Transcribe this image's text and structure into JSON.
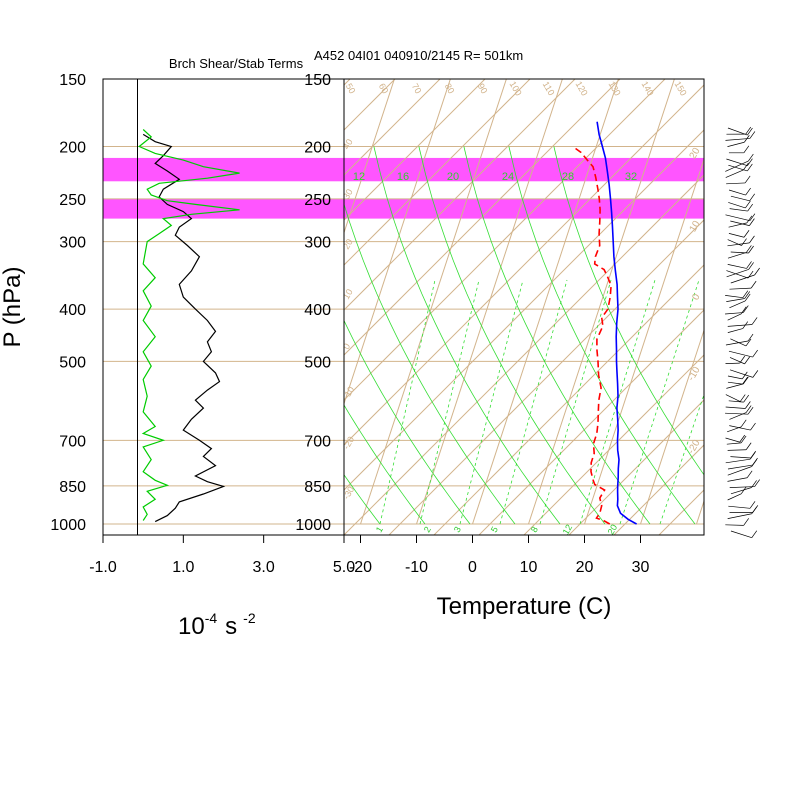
{
  "chart_data": [
    {
      "type": "line",
      "title": "Brch Shear/Stab Terms",
      "xlabel": "10",
      "xlabel_exponent": "-4",
      "xlabel_unit": "s",
      "xlabel_unit_exponent": "-2",
      "ylabel": "P (hPa)",
      "xlim": [
        -1.0,
        5.0
      ],
      "x_ticks": [
        "-1.0",
        "1.0",
        "3.0",
        "5.0"
      ],
      "y_scale": "log",
      "ylim": [
        1000,
        150
      ],
      "y_ticks": [
        "150",
        "200",
        "250",
        "300",
        "400",
        "500",
        "700",
        "850",
        "1000"
      ],
      "highlight_bands_hpa": [
        [
          210,
          232
        ],
        [
          250,
          272
        ]
      ],
      "highlight_color": "#ff55ff",
      "grid": true,
      "series": [
        {
          "color": "#000000",
          "points": [
            [
              0.0,
              190
            ],
            [
              0.3,
              196
            ],
            [
              0.7,
              200
            ],
            [
              0.5,
              208
            ],
            [
              0.3,
              215
            ],
            [
              0.6,
              222
            ],
            [
              0.9,
              230
            ],
            [
              0.5,
              240
            ],
            [
              0.4,
              248
            ],
            [
              0.6,
              256
            ],
            [
              1.0,
              264
            ],
            [
              1.2,
              272
            ],
            [
              0.9,
              282
            ],
            [
              0.8,
              292
            ],
            [
              1.1,
              305
            ],
            [
              1.4,
              320
            ],
            [
              1.2,
              340
            ],
            [
              0.9,
              360
            ],
            [
              1.0,
              380
            ],
            [
              1.3,
              400
            ],
            [
              1.6,
              420
            ],
            [
              1.8,
              440
            ],
            [
              1.6,
              460
            ],
            [
              1.7,
              480
            ],
            [
              1.5,
              500
            ],
            [
              1.8,
              525
            ],
            [
              1.9,
              545
            ],
            [
              1.6,
              565
            ],
            [
              1.3,
              590
            ],
            [
              1.5,
              610
            ],
            [
              1.2,
              640
            ],
            [
              1.0,
              670
            ],
            [
              1.4,
              700
            ],
            [
              1.7,
              725
            ],
            [
              1.5,
              750
            ],
            [
              1.8,
              780
            ],
            [
              1.3,
              815
            ],
            [
              1.6,
              835
            ],
            [
              2.0,
              852
            ],
            [
              1.5,
              880
            ],
            [
              0.9,
              910
            ],
            [
              0.8,
              935
            ],
            [
              0.6,
              965
            ],
            [
              0.3,
              990
            ]
          ]
        },
        {
          "color": "#00cc00",
          "points": [
            [
              0.0,
              186
            ],
            [
              0.2,
              192
            ],
            [
              -0.1,
              200
            ],
            [
              0.3,
              206
            ],
            [
              1.0,
              212
            ],
            [
              1.5,
              218
            ],
            [
              2.4,
              224
            ],
            [
              1.6,
              229
            ],
            [
              0.4,
              234
            ],
            [
              0.1,
              240
            ],
            [
              0.2,
              246
            ],
            [
              0.6,
              252
            ],
            [
              1.3,
              256
            ],
            [
              2.4,
              262
            ],
            [
              1.2,
              267
            ],
            [
              0.5,
              272
            ],
            [
              0.7,
              280
            ],
            [
              0.4,
              290
            ],
            [
              0.1,
              300
            ],
            [
              0.0,
              330
            ],
            [
              0.3,
              350
            ],
            [
              0.0,
              370
            ],
            [
              0.2,
              395
            ],
            [
              0.0,
              420
            ],
            [
              0.3,
              450
            ],
            [
              0.0,
              480
            ],
            [
              0.2,
              510
            ],
            [
              0.0,
              540
            ],
            [
              0.1,
              580
            ],
            [
              0.0,
              620
            ],
            [
              0.3,
              660
            ],
            [
              0.0,
              680
            ],
            [
              0.5,
              700
            ],
            [
              0.0,
              720
            ],
            [
              0.2,
              760
            ],
            [
              0.0,
              800
            ],
            [
              0.3,
              830
            ],
            [
              0.6,
              848
            ],
            [
              0.1,
              870
            ],
            [
              0.3,
              900
            ],
            [
              0.0,
              930
            ],
            [
              0.1,
              960
            ],
            [
              0.0,
              985
            ]
          ]
        }
      ]
    },
    {
      "type": "line",
      "title": "A452 04I01 040910/2145 R= 501km",
      "xlabel": "Temperature (C)",
      "ylabel": "",
      "xlim": [
        -25,
        40
      ],
      "x_ticks": [
        "-20",
        "-10",
        "0",
        "10",
        "20",
        "30"
      ],
      "y_scale": "log",
      "ylim": [
        1000,
        150
      ],
      "y_ticks": [
        "150",
        "200",
        "250",
        "300",
        "400",
        "500",
        "700",
        "850",
        "1000"
      ],
      "highlight_bands_hpa": [
        [
          210,
          232
        ],
        [
          250,
          272
        ]
      ],
      "highlight_color": "#ff55ff",
      "mixing_ratio_labels": [
        "12",
        "16",
        "20",
        "24",
        "28",
        "32"
      ],
      "bottom_mixing_labels": [
        "1",
        "2",
        "3",
        "5",
        "8",
        "12",
        "20"
      ],
      "top_theta_labels": [
        "50",
        "60",
        "70",
        "80",
        "90",
        "100",
        "110",
        "120",
        "130",
        "140",
        "150"
      ],
      "side_theta_labels": [
        "40",
        "30",
        "20",
        "10",
        "0",
        "-10",
        "-20",
        "-30"
      ],
      "right_edge_labels": [
        "20",
        "10",
        "0",
        "-10",
        "-20"
      ],
      "colors": {
        "skewt_grid": "#d2b48c",
        "moisture_lines": "#33dd33",
        "label_green": "#33cc33"
      },
      "series": [
        {
          "name": "temperature",
          "color": "#0000ff",
          "style": "solid",
          "points": [
            [
              29.3,
              1000
            ],
            [
              27.5,
              980
            ],
            [
              25.8,
              955
            ],
            [
              24.8,
              925
            ],
            [
              24.5,
              900
            ],
            [
              24.0,
              870
            ],
            [
              23.7,
              850
            ],
            [
              23.3,
              820
            ],
            [
              22.8,
              790
            ],
            [
              22.4,
              760
            ],
            [
              21.6,
              730
            ],
            [
              21.0,
              700
            ],
            [
              20.5,
              670
            ],
            [
              19.8,
              640
            ],
            [
              19.0,
              610
            ],
            [
              18.5,
              580
            ],
            [
              17.7,
              550
            ],
            [
              16.8,
              520
            ],
            [
              16.2,
              500
            ],
            [
              15.5,
              475
            ],
            [
              14.7,
              450
            ],
            [
              14.0,
              425
            ],
            [
              13.4,
              400
            ],
            [
              12.6,
              380
            ],
            [
              11.8,
              360
            ],
            [
              10.7,
              340
            ],
            [
              9.6,
              320
            ],
            [
              8.6,
              300
            ],
            [
              7.5,
              280
            ],
            [
              6.6,
              265
            ],
            [
              5.6,
              250
            ],
            [
              4.5,
              235
            ],
            [
              3.4,
              222
            ],
            [
              2.3,
              210
            ],
            [
              1.1,
              200
            ],
            [
              -0.2,
              190
            ],
            [
              -1.3,
              180
            ]
          ]
        },
        {
          "name": "dewpoint",
          "color": "#ff0000",
          "style": "dashed",
          "points": [
            [
              24.5,
              1000
            ],
            [
              23.2,
              985
            ],
            [
              21.8,
              975
            ],
            [
              22.1,
              955
            ],
            [
              22.0,
              925
            ],
            [
              21.2,
              895
            ],
            [
              21.6,
              865
            ],
            [
              19.5,
              845
            ],
            [
              19.0,
              830
            ],
            [
              18.1,
              800
            ],
            [
              17.6,
              770
            ],
            [
              17.6,
              740
            ],
            [
              16.9,
              710
            ],
            [
              16.9,
              680
            ],
            [
              16.5,
              650
            ],
            [
              15.9,
              620
            ],
            [
              15.3,
              590
            ],
            [
              15.0,
              560
            ],
            [
              13.8,
              530
            ],
            [
              12.9,
              500
            ],
            [
              12.0,
              475
            ],
            [
              11.4,
              455
            ],
            [
              11.7,
              430
            ],
            [
              11.0,
              415
            ],
            [
              11.6,
              400
            ],
            [
              11.3,
              380
            ],
            [
              10.8,
              362
            ],
            [
              9.6,
              348
            ],
            [
              8.6,
              338
            ],
            [
              6.6,
              330
            ],
            [
              6.3,
              320
            ],
            [
              6.4,
              305
            ],
            [
              5.6,
              290
            ],
            [
              5.0,
              275
            ],
            [
              4.4,
              262
            ],
            [
              3.6,
              250
            ],
            [
              2.8,
              240
            ],
            [
              1.7,
              228
            ],
            [
              0.6,
              218
            ],
            [
              -0.8,
              212
            ],
            [
              -2.4,
              205
            ],
            [
              -4.2,
              200
            ]
          ]
        }
      ],
      "barb_column": true
    }
  ]
}
